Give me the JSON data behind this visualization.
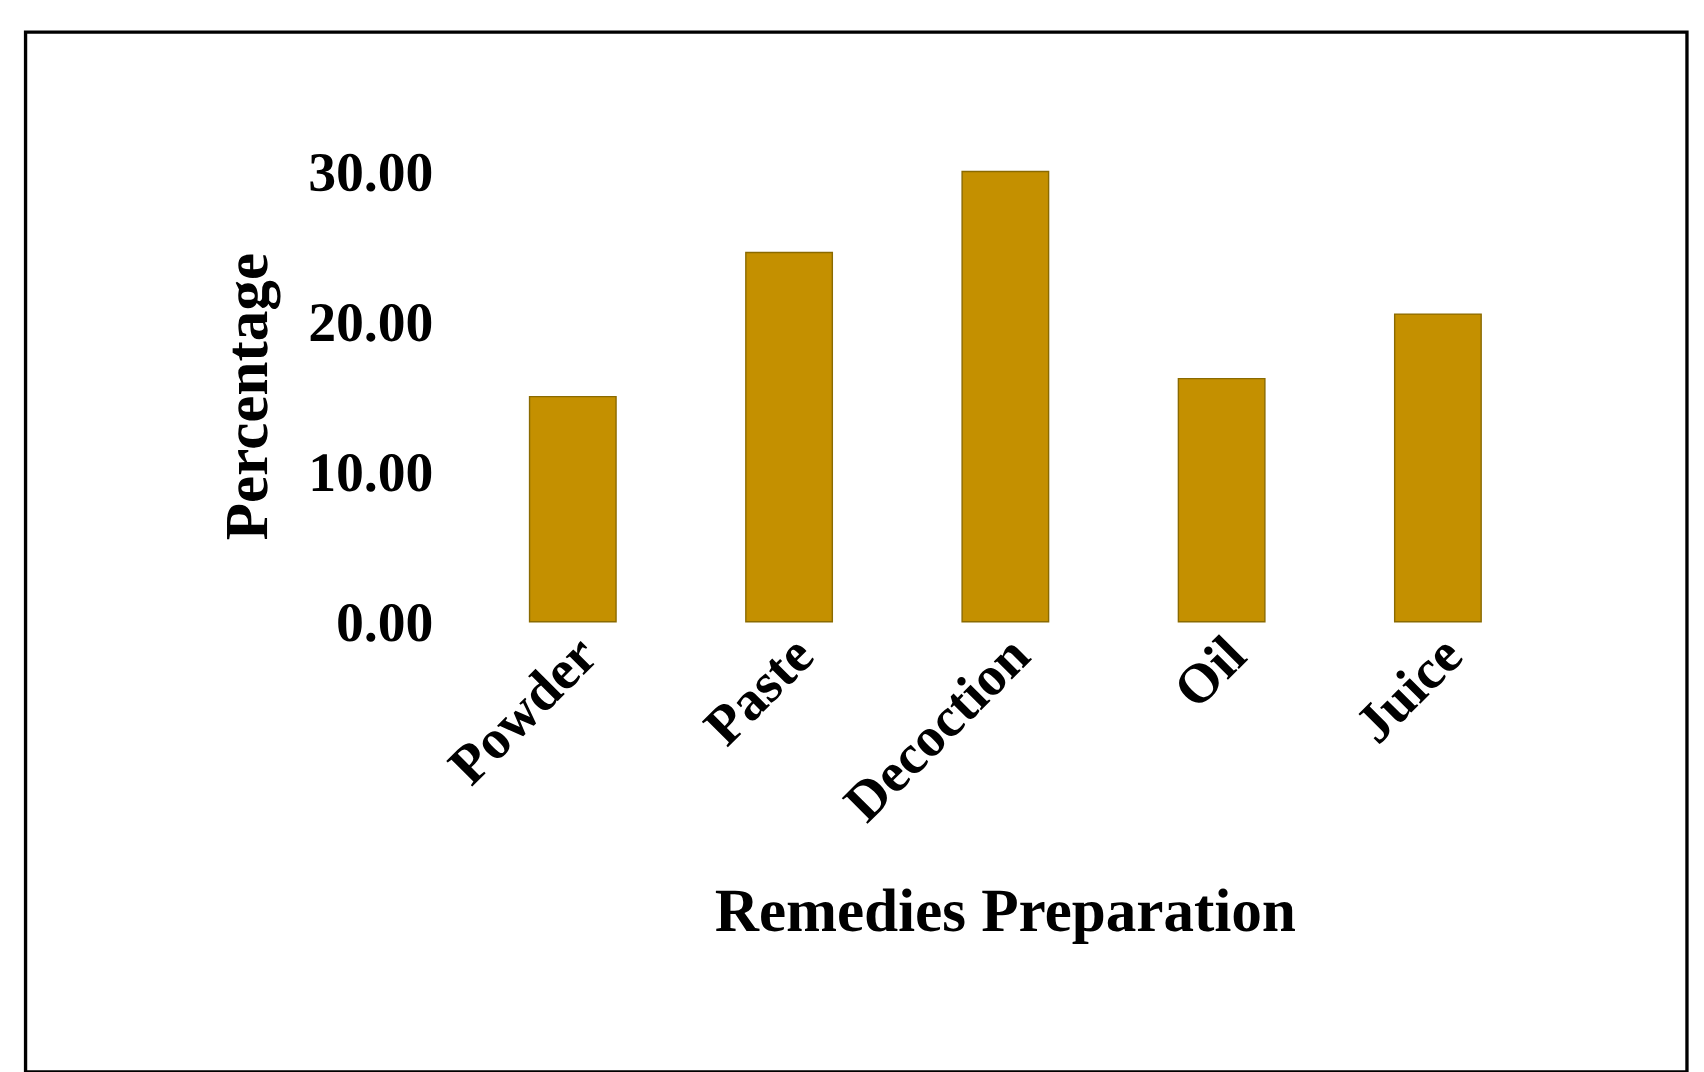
{
  "chart_data": {
    "type": "bar",
    "xlabel": "Remedies Preparation",
    "ylabel": "Percentage",
    "categories": [
      "Powder",
      "Paste",
      "Decoction",
      "Oil",
      "Juice"
    ],
    "values": [
      15.0,
      24.6,
      30.0,
      16.2,
      20.5
    ],
    "color": "#c49000",
    "ylim": [
      0,
      30
    ],
    "yticks": [
      {
        "value": 0,
        "label": "0.00"
      },
      {
        "value": 10,
        "label": "10.00"
      },
      {
        "value": 20,
        "label": "20.00"
      },
      {
        "value": 30,
        "label": "30.00"
      }
    ],
    "grid": false,
    "legend": false
  }
}
